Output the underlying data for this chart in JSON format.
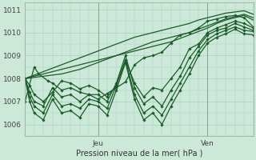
{
  "title": "",
  "xlabel": "Pression niveau de la mer( hPa )",
  "bg_color": "#cce8d8",
  "line_color": "#1a5c28",
  "grid_color": "#a8cfc0",
  "vline_color": "#7a9a8a",
  "ylim": [
    1005.5,
    1011.3
  ],
  "xlim": [
    0,
    50
  ],
  "xtick_positions": [
    16,
    40
  ],
  "xtick_labels": [
    "Jeu",
    "Ven"
  ],
  "ytick_positions": [
    1006,
    1007,
    1008,
    1009,
    1010,
    1011
  ],
  "vline_positions": [
    16,
    40
  ],
  "series": [
    {
      "x": [
        0,
        2,
        4,
        6,
        8,
        10,
        12,
        14,
        16,
        18,
        20,
        22,
        24,
        26,
        28,
        30,
        32,
        34,
        36,
        38,
        40,
        42,
        44,
        46,
        48,
        50
      ],
      "y": [
        1008.0,
        1008.15,
        1008.3,
        1008.45,
        1008.6,
        1008.75,
        1008.9,
        1009.05,
        1009.2,
        1009.35,
        1009.5,
        1009.65,
        1009.8,
        1009.9,
        1010.0,
        1010.1,
        1010.2,
        1010.3,
        1010.4,
        1010.55,
        1010.65,
        1010.75,
        1010.85,
        1010.9,
        1010.95,
        1010.8
      ],
      "has_markers": false,
      "lw": 0.9
    },
    {
      "x": [
        0,
        2,
        4,
        6,
        8,
        10,
        12,
        14,
        16,
        18,
        20,
        22,
        24,
        26,
        28,
        30,
        32,
        34,
        36,
        38,
        40,
        42,
        44,
        46,
        48,
        50
      ],
      "y": [
        1008.0,
        1008.1,
        1008.2,
        1008.3,
        1008.4,
        1008.5,
        1008.6,
        1008.7,
        1008.8,
        1008.9,
        1009.0,
        1009.15,
        1009.3,
        1009.45,
        1009.6,
        1009.7,
        1009.8,
        1009.9,
        1010.0,
        1010.15,
        1010.3,
        1010.45,
        1010.6,
        1010.7,
        1010.8,
        1010.65
      ],
      "has_markers": false,
      "lw": 0.9
    },
    {
      "x": [
        0,
        2,
        4,
        6,
        8,
        10,
        12,
        14,
        16,
        18,
        20,
        22,
        24,
        26,
        28,
        30,
        32,
        34,
        36,
        38,
        40,
        42,
        44,
        46,
        48,
        50
      ],
      "y": [
        1008.0,
        1008.05,
        1008.1,
        1008.15,
        1008.2,
        1008.3,
        1008.4,
        1008.55,
        1008.7,
        1008.85,
        1009.0,
        1009.1,
        1009.2,
        1009.3,
        1009.4,
        1009.5,
        1009.6,
        1009.75,
        1009.9,
        1010.05,
        1010.2,
        1010.4,
        1010.55,
        1010.65,
        1010.75,
        1010.55
      ],
      "has_markers": false,
      "lw": 0.9
    },
    {
      "x": [
        0,
        2,
        3,
        5,
        6,
        8,
        10,
        12,
        14,
        16,
        18,
        20,
        22,
        24,
        26,
        28,
        30,
        32,
        34,
        36,
        38,
        40,
        42,
        44,
        46,
        48,
        50
      ],
      "y": [
        1007.0,
        1008.5,
        1008.2,
        1007.9,
        1007.8,
        1007.5,
        1007.6,
        1007.4,
        1007.3,
        1007.1,
        1007.35,
        1007.6,
        1007.85,
        1008.6,
        1008.9,
        1009.0,
        1009.15,
        1009.55,
        1009.9,
        1010.0,
        1010.2,
        1010.5,
        1010.6,
        1010.7,
        1010.75,
        1010.65,
        1010.25
      ],
      "has_markers": true,
      "lw": 0.9
    },
    {
      "x": [
        0,
        1,
        2,
        4,
        6,
        8,
        10,
        12,
        14,
        16,
        18,
        20,
        22,
        24,
        26,
        28,
        30,
        32,
        34,
        36,
        38,
        40,
        42,
        44,
        46,
        48,
        50
      ],
      "y": [
        1008.0,
        1007.7,
        1007.3,
        1007.0,
        1007.4,
        1007.9,
        1007.8,
        1007.55,
        1007.7,
        1007.5,
        1007.2,
        1007.7,
        1008.8,
        1007.8,
        1007.2,
        1007.6,
        1007.5,
        1008.0,
        1008.5,
        1009.3,
        1009.5,
        1010.0,
        1010.2,
        1010.35,
        1010.5,
        1010.4,
        1010.2
      ],
      "has_markers": true,
      "lw": 0.9
    },
    {
      "x": [
        0,
        1,
        2,
        4,
        6,
        8,
        10,
        12,
        14,
        16,
        18,
        20,
        22,
        24,
        26,
        28,
        30,
        32,
        34,
        36,
        38,
        40,
        42,
        44,
        46,
        48,
        50
      ],
      "y": [
        1008.0,
        1007.4,
        1007.0,
        1006.8,
        1007.6,
        1007.2,
        1007.3,
        1007.0,
        1007.3,
        1007.3,
        1007.0,
        1007.8,
        1009.0,
        1007.6,
        1006.9,
        1007.2,
        1006.8,
        1007.5,
        1008.1,
        1008.9,
        1009.4,
        1009.9,
        1010.1,
        1010.2,
        1010.4,
        1010.25,
        1010.1
      ],
      "has_markers": true,
      "lw": 0.9
    },
    {
      "x": [
        0,
        1,
        2,
        4,
        6,
        8,
        10,
        12,
        14,
        16,
        18,
        20,
        22,
        24,
        26,
        28,
        30,
        32,
        34,
        36,
        38,
        40,
        42,
        44,
        46,
        48,
        50
      ],
      "y": [
        1008.0,
        1007.2,
        1006.8,
        1006.5,
        1007.3,
        1006.8,
        1006.9,
        1006.7,
        1007.1,
        1007.0,
        1006.7,
        1007.7,
        1008.8,
        1007.3,
        1006.5,
        1006.8,
        1006.4,
        1007.1,
        1007.8,
        1008.5,
        1009.2,
        1009.7,
        1009.95,
        1010.1,
        1010.25,
        1010.1,
        1010.05
      ],
      "has_markers": true,
      "lw": 0.9
    },
    {
      "x": [
        0,
        1,
        2,
        4,
        6,
        8,
        10,
        12,
        14,
        16,
        18,
        20,
        22,
        24,
        26,
        28,
        30,
        32,
        34,
        36,
        38,
        40,
        42,
        44,
        46,
        48,
        50
      ],
      "y": [
        1008.0,
        1007.0,
        1006.5,
        1006.2,
        1007.1,
        1006.5,
        1006.6,
        1006.3,
        1006.9,
        1006.8,
        1006.4,
        1007.5,
        1008.7,
        1007.1,
        1006.2,
        1006.5,
        1006.0,
        1006.8,
        1007.5,
        1008.2,
        1009.0,
        1009.55,
        1009.8,
        1009.95,
        1010.15,
        1009.95,
        1009.9
      ],
      "has_markers": true,
      "lw": 0.9
    }
  ]
}
